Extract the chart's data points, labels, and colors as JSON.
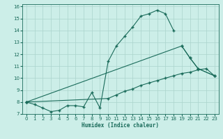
{
  "xlabel": "Humidex (Indice chaleur)",
  "bg_color": "#cceee8",
  "grid_color": "#aad4cc",
  "line_color": "#1a6b5a",
  "xlim": [
    -0.5,
    23.5
  ],
  "ylim": [
    7.0,
    16.2
  ],
  "xticks": [
    0,
    1,
    2,
    3,
    4,
    5,
    6,
    7,
    8,
    9,
    10,
    11,
    12,
    13,
    14,
    15,
    16,
    17,
    18,
    19,
    20,
    21,
    22,
    23
  ],
  "yticks": [
    7,
    8,
    9,
    10,
    11,
    12,
    13,
    14,
    15,
    16
  ],
  "curve1_x": [
    0,
    1,
    2,
    3,
    4,
    5,
    6,
    7,
    8,
    9,
    10,
    11,
    12,
    13,
    14,
    15,
    16,
    17,
    18
  ],
  "curve1_y": [
    8.0,
    7.8,
    7.5,
    7.2,
    7.3,
    7.7,
    7.7,
    7.6,
    8.8,
    7.5,
    11.4,
    12.7,
    13.5,
    14.3,
    15.2,
    15.4,
    15.7,
    15.4,
    14.0
  ],
  "curve2_x": [
    0,
    19,
    20,
    21,
    23
  ],
  "curve2_y": [
    8.0,
    12.7,
    11.7,
    10.8,
    10.2
  ],
  "curve3_x": [
    0,
    10,
    11,
    12,
    13,
    14,
    15,
    16,
    17,
    18,
    19,
    20,
    21,
    22,
    23
  ],
  "curve3_y": [
    8.0,
    8.3,
    8.6,
    8.9,
    9.1,
    9.4,
    9.6,
    9.8,
    10.0,
    10.2,
    10.4,
    10.5,
    10.7,
    10.8,
    10.2
  ]
}
